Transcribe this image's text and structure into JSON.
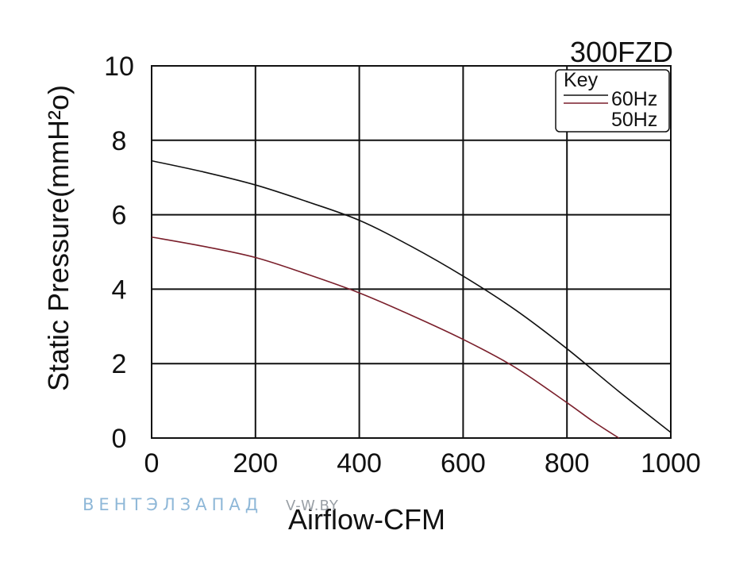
{
  "chart_data": {
    "type": "line",
    "title": "300FZD",
    "xlabel": "Airflow-CFM",
    "ylabel": "Static Pressure(mmH²o)",
    "xlim": [
      0,
      1000
    ],
    "ylim": [
      0,
      10
    ],
    "x_ticks": [
      "0",
      "200",
      "400",
      "600",
      "800",
      "1000"
    ],
    "y_ticks": [
      "0",
      "2",
      "4",
      "6",
      "8",
      "10"
    ],
    "grid": true,
    "legend": {
      "title": "Key",
      "placement": "top-right"
    },
    "series": [
      {
        "name": "60Hz",
        "color": "#111111",
        "x": [
          0,
          100,
          200,
          300,
          400,
          500,
          600,
          700,
          800,
          900,
          1000
        ],
        "y": [
          7.45,
          7.15,
          6.8,
          6.35,
          5.85,
          5.15,
          4.35,
          3.45,
          2.4,
          1.25,
          0.15
        ]
      },
      {
        "name": "50Hz",
        "color": "#7a1f2b",
        "x": [
          0,
          100,
          200,
          300,
          400,
          500,
          600,
          700,
          800,
          850,
          900
        ],
        "y": [
          5.4,
          5.15,
          4.85,
          4.4,
          3.9,
          3.3,
          2.65,
          1.9,
          0.95,
          0.45,
          0
        ]
      }
    ]
  },
  "watermark": {
    "brand": "ВЕНТЭЛЗАПАД",
    "site": "V-W.BY",
    "color_primary": "#8fb8d8",
    "color_secondary": "#9aa0a6"
  }
}
